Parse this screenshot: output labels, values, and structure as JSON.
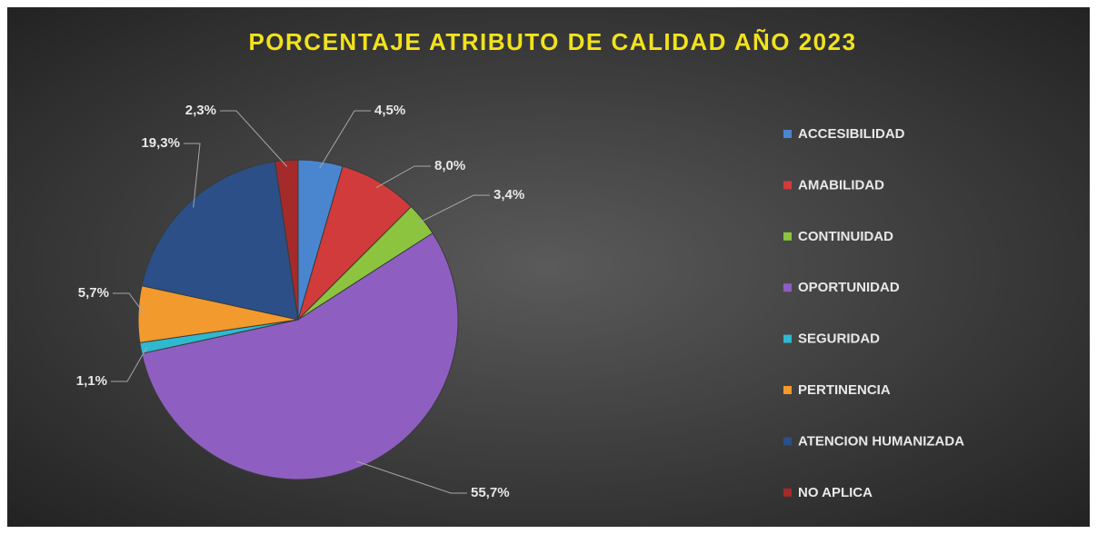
{
  "chart_data": {
    "type": "pie",
    "title": "PORCENTAJE  ATRIBUTO  DE CALIDAD AÑO 2023",
    "categories": [
      "ACCESIBILIDAD",
      "AMABILIDAD",
      "CONTINUIDAD",
      "OPORTUNIDAD",
      "SEGURIDAD",
      "PERTINENCIA",
      "ATENCION HUMANIZADA",
      "NO APLICA"
    ],
    "values": [
      4.5,
      8.0,
      3.4,
      55.7,
      1.1,
      5.7,
      19.3,
      2.3
    ],
    "value_labels": [
      "4,5%",
      "8,0%",
      "3,4%",
      "55,7%",
      "1,1%",
      "5,7%",
      "19,3%",
      "2,3%"
    ],
    "colors": [
      "#4a86d0",
      "#d13b3b",
      "#8cc43f",
      "#8e5fc0",
      "#2fb8d0",
      "#f29a2e",
      "#2b4f86",
      "#a52a2a"
    ],
    "legend": "right"
  }
}
